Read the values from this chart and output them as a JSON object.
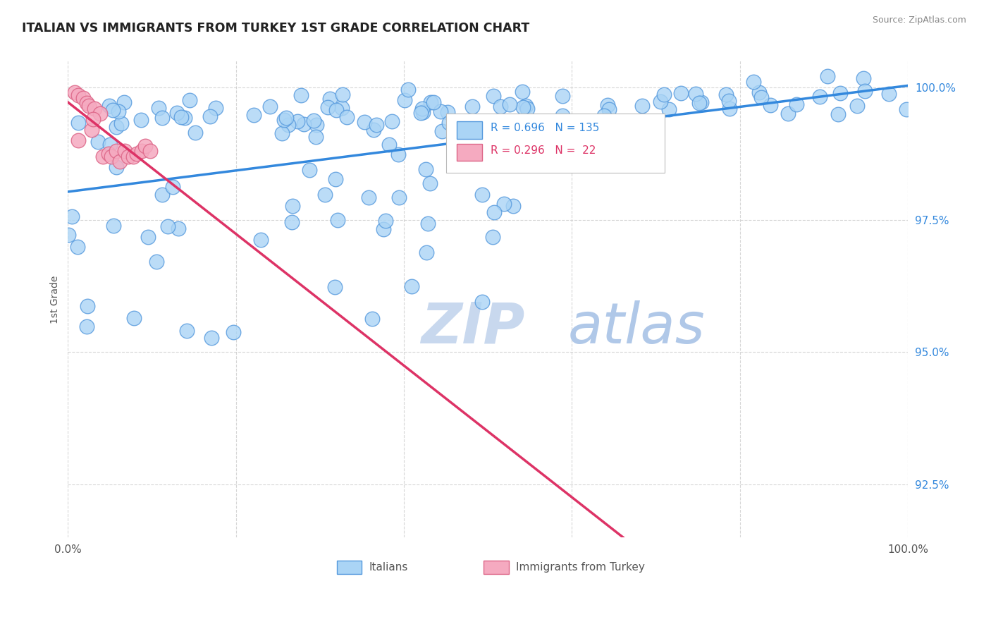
{
  "title": "ITALIAN VS IMMIGRANTS FROM TURKEY 1ST GRADE CORRELATION CHART",
  "source_text": "Source: ZipAtlas.com",
  "ylabel": "1st Grade",
  "xmin": 0.0,
  "xmax": 1.0,
  "ymin": 0.915,
  "ymax": 1.005,
  "ytick_labels": [
    "92.5%",
    "95.0%",
    "97.5%",
    "100.0%"
  ],
  "ytick_values": [
    0.925,
    0.95,
    0.975,
    1.0
  ],
  "legend_r_italians": "R = 0.696",
  "legend_n_italians": "N = 135",
  "legend_r_turkey": "R = 0.296",
  "legend_n_turkey": "N =  22",
  "italians_color": "#aad4f5",
  "italians_edge_color": "#5599dd",
  "turkey_color": "#f5aac0",
  "turkey_edge_color": "#dd6688",
  "trend_italians_color": "#3388dd",
  "trend_turkey_color": "#dd3366",
  "watermark_zip_color": "#c8d8ee",
  "watermark_atlas_color": "#b0c8e8",
  "grid_color": "#cccccc",
  "background_color": "#ffffff",
  "title_color": "#222222",
  "ytick_color": "#3388dd",
  "source_color": "#888888"
}
